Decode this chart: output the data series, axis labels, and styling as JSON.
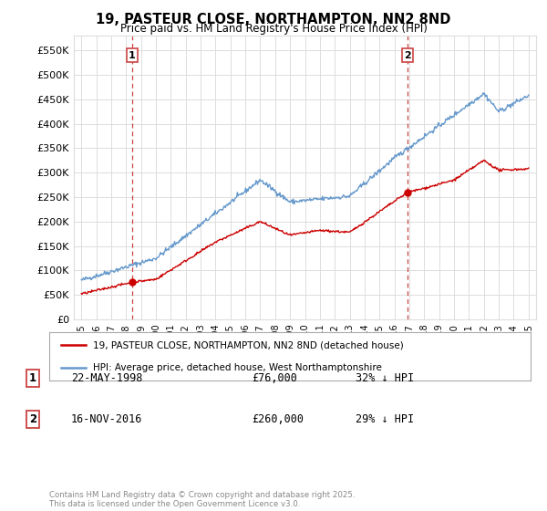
{
  "title": "19, PASTEUR CLOSE, NORTHAMPTON, NN2 8ND",
  "subtitle": "Price paid vs. HM Land Registry's House Price Index (HPI)",
  "ylabel_ticks": [
    "£0",
    "£50K",
    "£100K",
    "£150K",
    "£200K",
    "£250K",
    "£300K",
    "£350K",
    "£400K",
    "£450K",
    "£500K",
    "£550K"
  ],
  "ytick_vals": [
    0,
    50000,
    100000,
    150000,
    200000,
    250000,
    300000,
    350000,
    400000,
    450000,
    500000,
    550000
  ],
  "ylim": [
    0,
    580000
  ],
  "xlim_start": 1994.5,
  "xlim_end": 2025.5,
  "purchase1": {
    "date_label": "22-MAY-1998",
    "price": 76000,
    "hpi_diff": "32% ↓ HPI",
    "x": 1998.39,
    "number": "1"
  },
  "purchase2": {
    "date_label": "16-NOV-2016",
    "price": 260000,
    "hpi_diff": "29% ↓ HPI",
    "x": 2016.88,
    "number": "2"
  },
  "red_line_color": "#cc0000",
  "blue_line_color": "#6699cc",
  "vline_color": "#cc4444",
  "dot_color": "#cc0000",
  "legend_label_red": "19, PASTEUR CLOSE, NORTHAMPTON, NN2 8ND (detached house)",
  "legend_label_blue": "HPI: Average price, detached house, West Northamptonshire",
  "footer": "Contains HM Land Registry data © Crown copyright and database right 2025.\nThis data is licensed under the Open Government Licence v3.0.",
  "background_color": "#ffffff",
  "grid_color": "#dddddd",
  "xticks": [
    1995,
    1996,
    1997,
    1998,
    1999,
    2000,
    2001,
    2002,
    2003,
    2004,
    2005,
    2006,
    2007,
    2008,
    2009,
    2010,
    2011,
    2012,
    2013,
    2014,
    2015,
    2016,
    2017,
    2018,
    2019,
    2020,
    2021,
    2022,
    2023,
    2024,
    2025
  ]
}
